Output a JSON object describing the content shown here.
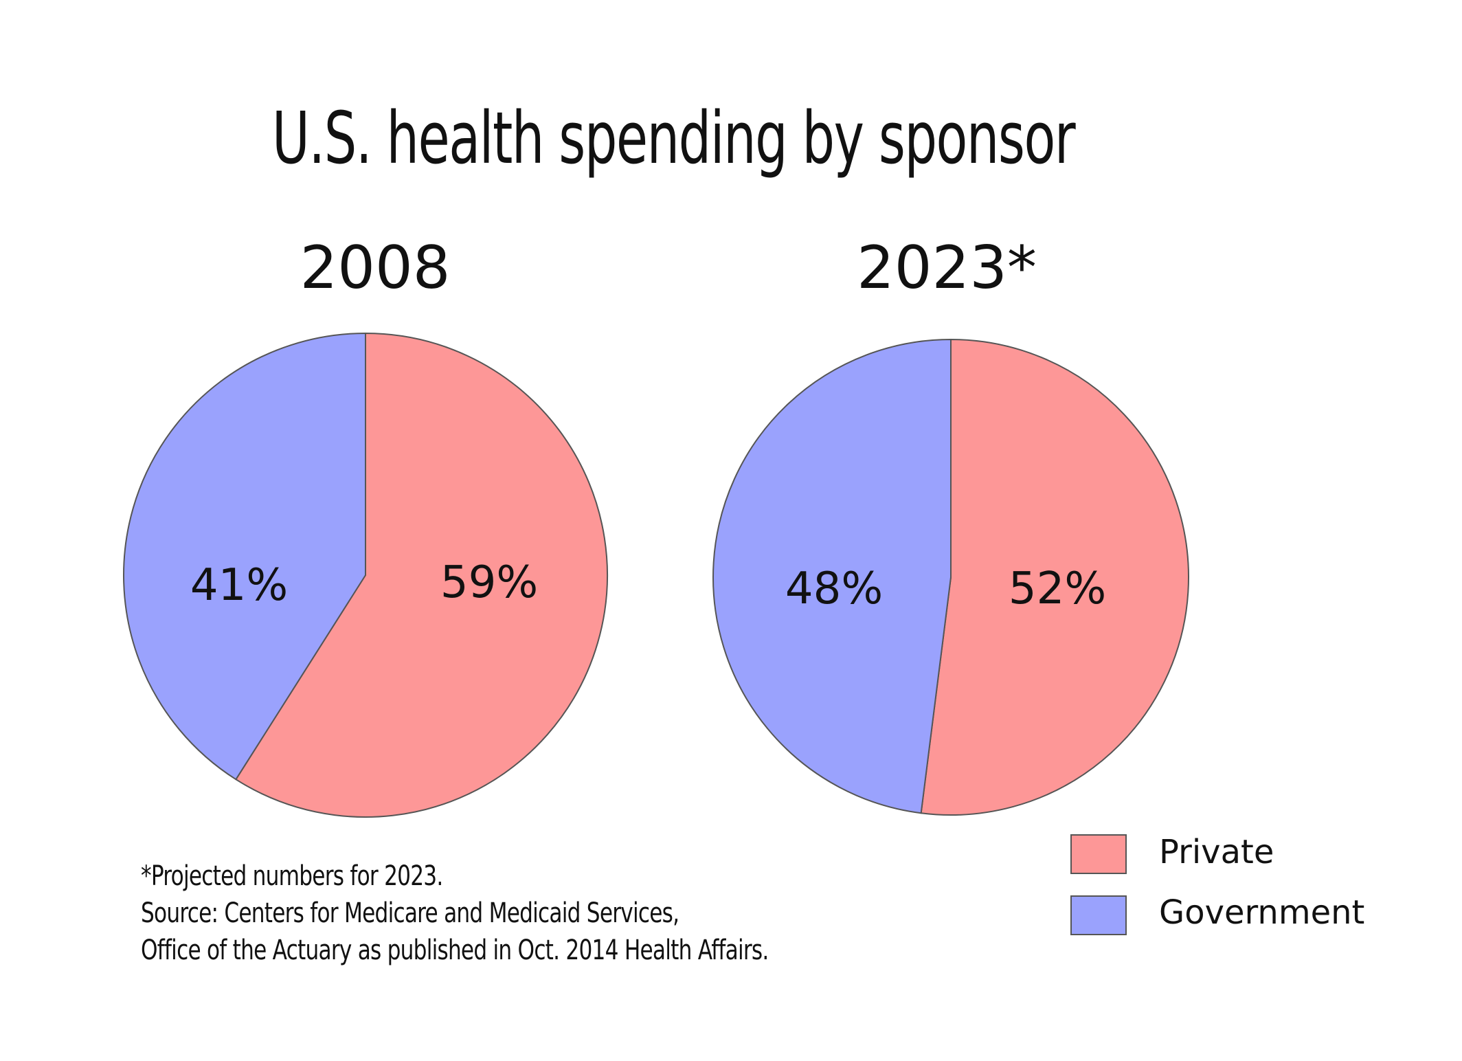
{
  "chart_data": {
    "type": "pie",
    "title": "U.S. health spending by sponsor",
    "colors": {
      "Private": "#fd9797",
      "Government": "#9aa2fd"
    },
    "legend": {
      "placement": "bottom-right",
      "entries": [
        "Private",
        "Government"
      ]
    },
    "pies": [
      {
        "label": "2008",
        "slices": [
          {
            "name": "Private",
            "value": 59,
            "label": "59%"
          },
          {
            "name": "Government",
            "value": 41,
            "label": "41%"
          }
        ]
      },
      {
        "label": "2023*",
        "slices": [
          {
            "name": "Private",
            "value": 52,
            "label": "52%"
          },
          {
            "name": "Government",
            "value": 48,
            "label": "48%"
          }
        ]
      }
    ],
    "footnotes": [
      "*Projected numbers for 2023.",
      "Source: Centers for Medicare and Medicaid Services,",
      "Office of the Actuary as published in Oct. 2014 Health Affairs."
    ]
  }
}
